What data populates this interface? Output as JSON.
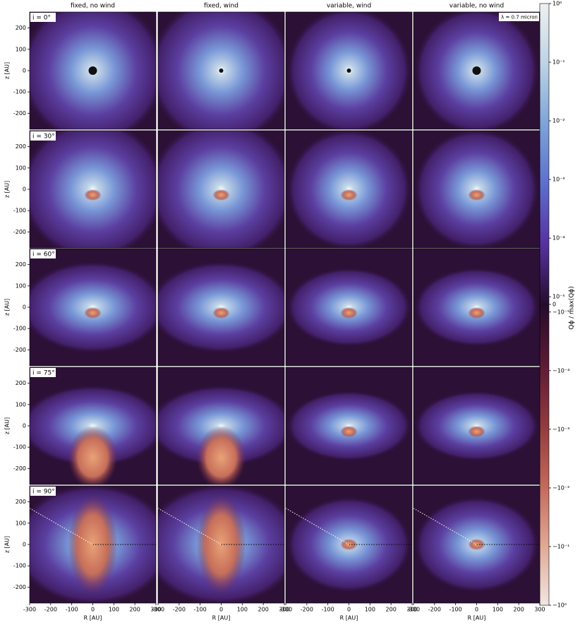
{
  "chart_data": {
    "type": "image-grid",
    "columns": [
      "fixed, no wind",
      "fixed, wind",
      "variable, wind",
      "variable, no wind"
    ],
    "rows": [
      "i = 0°",
      "i = 30°",
      "i = 60°",
      "i = 75°",
      "i = 90°"
    ],
    "x_label": "R [AU]",
    "y_label": "z [AU]",
    "xlim": [
      -300,
      300
    ],
    "ylim": [
      -275,
      275
    ],
    "xticks": [
      -300,
      -200,
      -100,
      0,
      100,
      200,
      300
    ],
    "yticks": [
      -200,
      -100,
      0,
      100,
      200
    ],
    "annotation": "λ = 0.7 micron",
    "colorbar": {
      "label": "Qϕ / max(Qϕ)",
      "scale": "symlog",
      "linthresh": 1e-05,
      "linscale": 0.13,
      "lim": [
        -1,
        1
      ],
      "ticks": [
        {
          "value": 1,
          "label": "10⁰"
        },
        {
          "value": 0.1,
          "label": "10⁻¹"
        },
        {
          "value": 0.01,
          "label": "10⁻²"
        },
        {
          "value": 0.001,
          "label": "10⁻³"
        },
        {
          "value": 0.0001,
          "label": "10⁻⁴"
        },
        {
          "value": 1e-05,
          "label": "10⁻⁵"
        },
        0,
        {
          "value": -1e-05,
          "label": "−10⁻⁵"
        },
        {
          "value": -0.0001,
          "label": "−10⁻⁴"
        },
        {
          "value": -0.001,
          "label": "−10⁻³"
        },
        {
          "value": -0.01,
          "label": "−10⁻²"
        },
        {
          "value": -0.1,
          "label": "−10⁻¹"
        },
        {
          "value": -1,
          "label": "−10⁰"
        }
      ]
    }
  }
}
